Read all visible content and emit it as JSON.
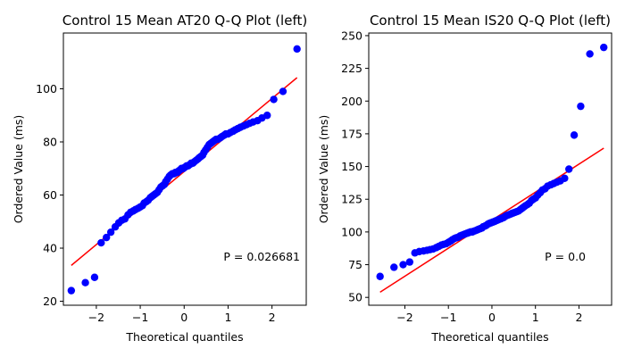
{
  "chart_data": [
    {
      "type": "scatter",
      "title": "Control 15 Mean AT20 Q-Q Plot (left)",
      "xlabel": "Theoretical quantiles",
      "ylabel": "Ordered Value (ms)",
      "xlim": [
        -2.75,
        2.78
      ],
      "ylim": [
        18.5,
        121
      ],
      "xticks": [
        -2,
        -1,
        0,
        1,
        2
      ],
      "yticks": [
        20,
        40,
        60,
        80,
        100
      ],
      "xtick_labels": [
        "−2",
        "−1",
        "0",
        "1",
        "2"
      ],
      "ytick_labels": [
        "20",
        "40",
        "60",
        "80",
        "100"
      ],
      "annotation": "P = 0.026681",
      "point_color": "#0000ff",
      "line_color": "#ff0000",
      "fit_line": {
        "x": [
          -2.57,
          2.57
        ],
        "y": [
          33.5,
          104.2
        ]
      },
      "points": {
        "x": [
          -2.57,
          -2.25,
          -2.04,
          -1.89,
          -1.77,
          -1.67,
          -1.57,
          -1.49,
          -1.42,
          -1.35,
          -1.28,
          -1.22,
          -1.16,
          -1.11,
          -1.05,
          -1.0,
          -0.95,
          -0.91,
          -0.86,
          -0.82,
          -0.77,
          -0.73,
          -0.69,
          -0.65,
          -0.61,
          -0.57,
          -0.53,
          -0.49,
          -0.45,
          -0.42,
          -0.38,
          -0.34,
          -0.31,
          -0.27,
          -0.23,
          -0.2,
          -0.16,
          -0.13,
          -0.09,
          -0.06,
          -0.02,
          0.02,
          0.06,
          0.09,
          0.13,
          0.16,
          0.2,
          0.23,
          0.27,
          0.31,
          0.34,
          0.38,
          0.42,
          0.45,
          0.49,
          0.53,
          0.57,
          0.61,
          0.65,
          0.69,
          0.73,
          0.77,
          0.82,
          0.86,
          0.91,
          0.95,
          1.0,
          1.05,
          1.11,
          1.16,
          1.22,
          1.28,
          1.35,
          1.42,
          1.49,
          1.57,
          1.67,
          1.77,
          1.89,
          2.04,
          2.25,
          2.57
        ],
        "y": [
          24,
          27,
          29,
          42,
          44,
          46,
          48,
          49.5,
          50.5,
          51,
          52.5,
          53.5,
          54,
          54.5,
          55,
          55.5,
          56,
          57,
          57.5,
          58,
          59,
          59.5,
          60,
          60.5,
          61,
          62,
          63,
          63.5,
          64,
          65,
          66,
          67,
          67.5,
          68,
          68,
          68.5,
          68.5,
          69,
          69.5,
          70,
          70,
          70.5,
          71,
          71,
          71.5,
          72,
          72,
          72.5,
          73,
          73.5,
          74,
          74.5,
          75,
          76,
          77,
          78,
          79,
          79.5,
          80,
          80.5,
          81,
          81,
          81.5,
          82,
          82.5,
          83,
          83,
          83.5,
          84,
          84.5,
          85,
          85.5,
          86,
          86.5,
          87,
          87.5,
          88,
          89,
          90,
          96,
          99,
          115
        ]
      }
    },
    {
      "type": "scatter",
      "title": "Control 15 Mean IS20 Q-Q Plot (left)",
      "xlabel": "Theoretical quantiles",
      "ylabel": "Ordered Value (ms)",
      "xlim": [
        -2.83,
        2.75
      ],
      "ylim": [
        44,
        252
      ],
      "xticks": [
        -2,
        -1,
        0,
        1,
        2
      ],
      "yticks": [
        50,
        75,
        100,
        125,
        150,
        175,
        200,
        225,
        250
      ],
      "xtick_labels": [
        "−2",
        "−1",
        "0",
        "1",
        "2"
      ],
      "ytick_labels": [
        "50",
        "75",
        "100",
        "125",
        "150",
        "175",
        "200",
        "225",
        "250"
      ],
      "annotation": "P = 0.0",
      "point_color": "#0000ff",
      "line_color": "#ff0000",
      "fit_line": {
        "x": [
          -2.57,
          2.57
        ],
        "y": [
          54,
          164
        ]
      },
      "points": {
        "x": [
          -2.57,
          -2.25,
          -2.04,
          -1.89,
          -1.77,
          -1.67,
          -1.57,
          -1.49,
          -1.42,
          -1.35,
          -1.28,
          -1.22,
          -1.16,
          -1.11,
          -1.05,
          -1.0,
          -0.95,
          -0.91,
          -0.86,
          -0.82,
          -0.77,
          -0.73,
          -0.69,
          -0.65,
          -0.61,
          -0.57,
          -0.53,
          -0.49,
          -0.45,
          -0.42,
          -0.38,
          -0.34,
          -0.31,
          -0.27,
          -0.23,
          -0.2,
          -0.16,
          -0.13,
          -0.09,
          -0.06,
          -0.02,
          0.02,
          0.06,
          0.09,
          0.13,
          0.16,
          0.2,
          0.23,
          0.27,
          0.31,
          0.34,
          0.38,
          0.42,
          0.45,
          0.49,
          0.53,
          0.57,
          0.61,
          0.65,
          0.69,
          0.73,
          0.77,
          0.82,
          0.86,
          0.91,
          0.95,
          1.0,
          1.05,
          1.11,
          1.16,
          1.22,
          1.28,
          1.35,
          1.42,
          1.49,
          1.57,
          1.67,
          1.77,
          1.89,
          2.04,
          2.25,
          2.57
        ],
        "y": [
          66,
          73,
          75,
          77,
          84,
          85,
          85.5,
          86,
          86.5,
          87,
          88,
          89,
          90,
          90.5,
          91,
          92,
          93,
          94,
          95,
          95.5,
          96,
          97,
          97.5,
          98,
          98.5,
          99,
          99.5,
          100,
          100,
          100.5,
          101,
          101.5,
          102,
          102.5,
          103,
          104,
          104.5,
          105,
          106,
          106.5,
          107,
          107.5,
          108,
          108.5,
          109,
          109.5,
          110,
          110.5,
          111,
          112,
          112.5,
          113,
          113.5,
          114,
          114.5,
          115,
          115.5,
          116,
          117,
          118,
          119,
          120,
          121,
          122,
          124,
          125,
          126,
          128,
          130,
          132,
          133,
          135,
          136,
          137,
          138,
          139,
          141,
          148,
          174,
          196,
          236,
          241
        ]
      }
    }
  ]
}
